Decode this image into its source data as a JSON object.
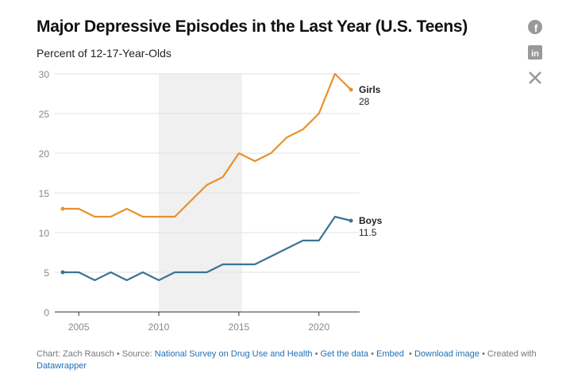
{
  "header": {
    "title": "Major Depressive Episodes in the Last Year (U.S. Teens)",
    "subtitle": "Percent of 12-17-Year-Olds"
  },
  "social": {
    "facebook": "facebook-icon",
    "linkedin": "linkedin-icon",
    "x": "x-icon"
  },
  "footer": {
    "chart_by": "Chart: Zach Rausch",
    "source_label": "• Source:",
    "source_link": "National Survey on Drug Use and Health",
    "get_data": "Get the data",
    "embed": "Embed",
    "download": "Download image",
    "created": "• Created with",
    "datawrapper": "Datawrapper",
    "sep": "•"
  },
  "chart_data": {
    "type": "line",
    "title": "Major Depressive Episodes in the Last Year (U.S. Teens)",
    "ylabel": "Percent of 12-17-Year-Olds",
    "xlim": [
      2003.5,
      2022.5
    ],
    "ylim": [
      0,
      30
    ],
    "yticks": [
      "0",
      "5",
      "10",
      "15",
      "20",
      "25",
      "30"
    ],
    "xticks": [
      "2005",
      "2010",
      "2015",
      "2020"
    ],
    "grid": true,
    "shaded_range": [
      2010,
      2015.2
    ],
    "x": [
      2004,
      2005,
      2006,
      2007,
      2008,
      2009,
      2010,
      2011,
      2012,
      2013,
      2014,
      2015,
      2016,
      2017,
      2018,
      2019,
      2020,
      2021,
      2022
    ],
    "series": [
      {
        "name": "Girls",
        "end_label": "28",
        "color": "#e8912a",
        "values": [
          13,
          13,
          12,
          12,
          13,
          12,
          12,
          12,
          14,
          16,
          17,
          20,
          19,
          20,
          22,
          23,
          25,
          30,
          28
        ]
      },
      {
        "name": "Boys",
        "end_label": "11.5",
        "color": "#3a7397",
        "values": [
          5,
          5,
          4,
          5,
          4,
          5,
          4,
          5,
          5,
          5,
          6,
          6,
          6,
          7,
          8,
          9,
          9,
          12,
          11.5
        ]
      }
    ]
  }
}
